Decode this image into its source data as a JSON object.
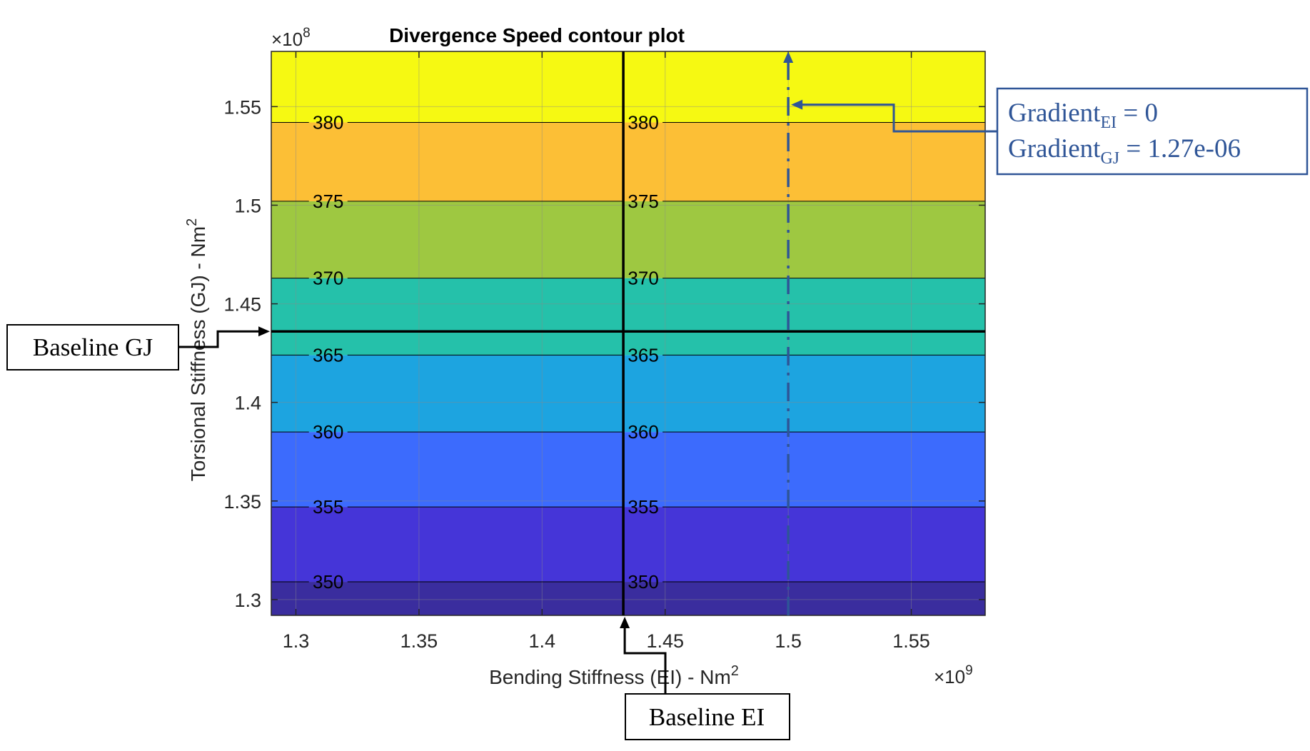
{
  "chart_data": {
    "type": "heatmap",
    "title": "Divergence Speed contour plot",
    "xlabel": "Bending Stiffness (EI) - Nm",
    "xlabel_sup": "2",
    "ylabel": "Torsional Stiffness (GJ) - Nm",
    "ylabel_sup": "2",
    "x_multiplier": {
      "base": "×10",
      "exp": "9"
    },
    "y_multiplier": {
      "base": "×10",
      "exp": "8"
    },
    "xlim": [
      1.29,
      1.58
    ],
    "ylim": [
      1.292,
      1.578
    ],
    "x_ticks": [
      1.3,
      1.35,
      1.4,
      1.45,
      1.5,
      1.55
    ],
    "x_tick_labels": [
      "1.3",
      "1.35",
      "1.4",
      "1.45",
      "1.5",
      "1.55"
    ],
    "y_ticks": [
      1.3,
      1.35,
      1.4,
      1.45,
      1.5,
      1.55
    ],
    "y_tick_labels": [
      "1.3",
      "1.35",
      "1.4",
      "1.45",
      "1.5",
      "1.55"
    ],
    "grid": true,
    "bands": [
      {
        "y_from": 1.292,
        "y_to": 1.309,
        "color": "#3a2d9e"
      },
      {
        "y_from": 1.309,
        "y_to": 1.347,
        "color": "#4535d8"
      },
      {
        "y_from": 1.347,
        "y_to": 1.385,
        "color": "#3c6bfd"
      },
      {
        "y_from": 1.385,
        "y_to": 1.424,
        "color": "#1da4e0"
      },
      {
        "y_from": 1.424,
        "y_to": 1.463,
        "color": "#25c1aa"
      },
      {
        "y_from": 1.463,
        "y_to": 1.502,
        "color": "#9ec841"
      },
      {
        "y_from": 1.502,
        "y_to": 1.542,
        "color": "#fcbf36"
      },
      {
        "y_from": 1.542,
        "y_to": 1.578,
        "color": "#f6f912"
      }
    ],
    "contours": [
      {
        "level": "350",
        "y": 1.309
      },
      {
        "level": "355",
        "y": 1.347
      },
      {
        "level": "360",
        "y": 1.385
      },
      {
        "level": "365",
        "y": 1.424
      },
      {
        "level": "370",
        "y": 1.463
      },
      {
        "level": "375",
        "y": 1.502
      },
      {
        "level": "380",
        "y": 1.542
      }
    ],
    "contour_label_x": [
      1.305,
      1.433
    ],
    "baseline_ei": 1.433,
    "baseline_gj": 1.436,
    "gradient_line_x": 1.5,
    "gradient_point_y": 1.551
  },
  "annotations": {
    "baseline_gj": "Baseline GJ",
    "baseline_ei": "Baseline EI",
    "gradient_word": "Gradient",
    "ei_sub": "EI",
    "ei_value": " = 0",
    "gj_sub": "GJ",
    "gj_value": " = 1.27e-06"
  },
  "colors": {
    "axis": "#262626",
    "grid": "#8a8a8a",
    "annotation_blue": "#2f5597"
  }
}
